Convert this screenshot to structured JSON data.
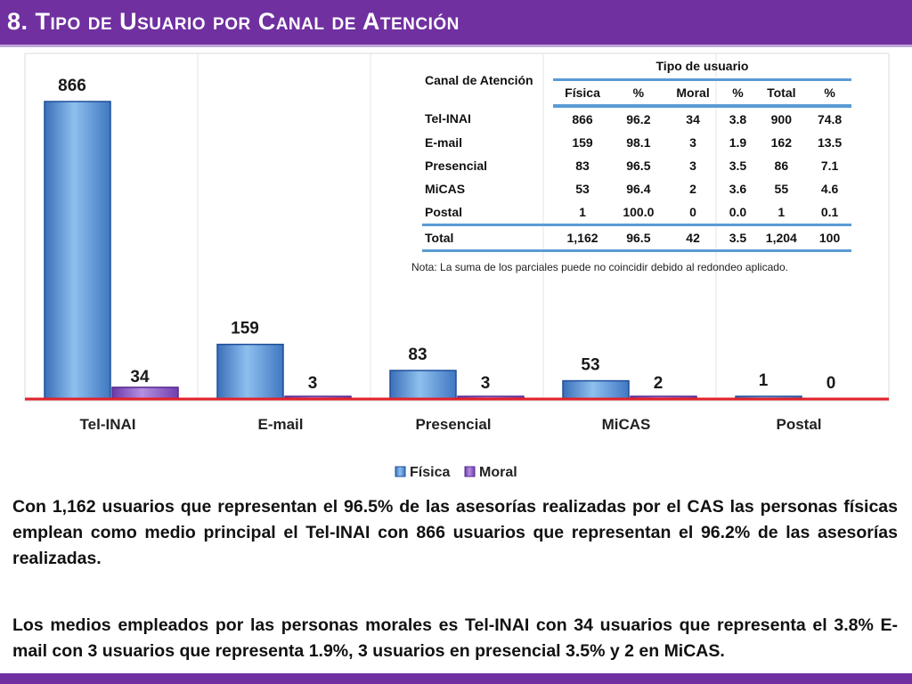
{
  "title": "8. Tipo de Usuario por Canal de Atención",
  "colors": {
    "accent": "#7030a0",
    "fisica": "#5b9bd5",
    "moral": "#8e5cc4",
    "baseline": "#e32129"
  },
  "chart_data": {
    "type": "bar",
    "categories": [
      "Tel-INAI",
      "E-mail",
      "Presencial",
      "MiCAS",
      "Postal"
    ],
    "series": [
      {
        "name": "Física",
        "values": [
          866,
          159,
          83,
          53,
          1
        ]
      },
      {
        "name": "Moral",
        "values": [
          34,
          3,
          3,
          2,
          0
        ]
      }
    ],
    "title": "",
    "xlabel": "",
    "ylabel": "",
    "ylim": [
      0,
      866
    ],
    "grid": false,
    "legend": "bottom-center"
  },
  "table": {
    "header_channel": "Canal de Atención",
    "header_group": "Tipo de usuario",
    "columns": [
      "Física",
      "%",
      "Moral",
      "%",
      "Total",
      "%"
    ],
    "rows": [
      [
        "Tel-INAI",
        "866",
        "96.2",
        "34",
        "3.8",
        "900",
        "74.8"
      ],
      [
        "E-mail",
        "159",
        "98.1",
        "3",
        "1.9",
        "162",
        "13.5"
      ],
      [
        "Presencial",
        "83",
        "96.5",
        "3",
        "3.5",
        "86",
        "7.1"
      ],
      [
        "MiCAS",
        "53",
        "96.4",
        "2",
        "3.6",
        "55",
        "4.6"
      ],
      [
        "Postal",
        "1",
        "100.0",
        "0",
        "0.0",
        "1",
        "0.1"
      ]
    ],
    "total": [
      "Total",
      "1,162",
      "96.5",
      "42",
      "3.5",
      "1,204",
      "100"
    ],
    "note": "Nota: La suma de los parciales puede no coincidir debido al redondeo aplicado."
  },
  "text": {
    "paragraph1": "Con 1,162 usuarios que representan el 96.5% de las asesorías realizadas por el CAS las personas físicas emplean como medio principal el Tel-INAI con 866 usuarios que representan el 96.2% de las asesorías realizadas.",
    "paragraph2": "Los medios empleados por las personas morales es Tel-INAI con 34 usuarios que representa el 3.8%  E-mail con 3 usuarios que representa 1.9%, 3 usuarios en presencial 3.5% y 2 en MiCAS."
  }
}
